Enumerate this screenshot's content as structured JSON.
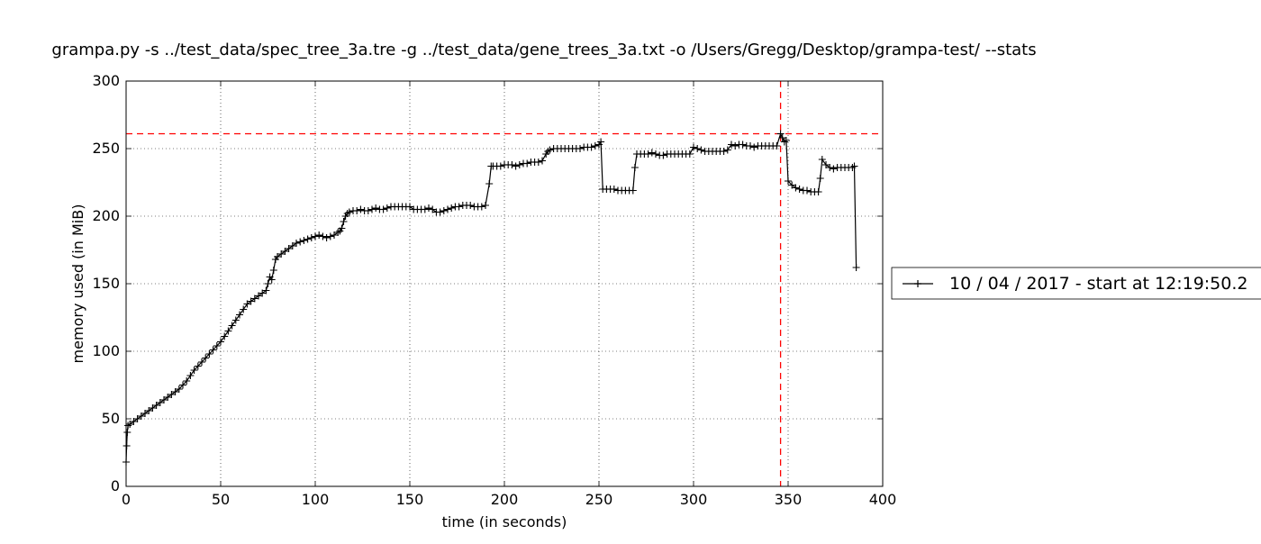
{
  "chart_data": {
    "type": "line",
    "title": "grampa.py -s ../test_data/spec_tree_3a.tre -g ../test_data/gene_trees_3a.txt -o /Users/Gregg/Desktop/grampa-test/ --stats",
    "xlabel": "time (in seconds)",
    "ylabel": "memory used (in MiB)",
    "xlim": [
      0,
      400
    ],
    "ylim": [
      0,
      300
    ],
    "xticks": [
      0,
      50,
      100,
      150,
      200,
      250,
      300,
      350,
      400
    ],
    "yticks": [
      0,
      50,
      100,
      150,
      200,
      250,
      300
    ],
    "grid": true,
    "legend_position": "right-outside",
    "marker": "plus",
    "series": [
      {
        "name": "10 / 04 / 2017 - start at 12:19:50.2",
        "color": "#000000",
        "x": [
          0,
          0.3,
          0.6,
          1,
          2,
          4,
          6,
          8,
          10,
          12,
          14,
          16,
          18,
          20,
          22,
          24,
          26,
          28,
          30,
          32,
          34,
          36,
          38,
          40,
          42,
          44,
          46,
          48,
          50,
          52,
          54,
          56,
          58,
          60,
          62,
          64,
          66,
          68,
          70,
          72,
          74,
          75,
          76,
          77,
          78,
          79,
          80,
          82,
          84,
          86,
          88,
          90,
          92,
          94,
          96,
          98,
          100,
          102,
          104,
          106,
          108,
          110,
          112,
          113,
          114,
          115,
          116,
          117,
          118,
          120,
          122,
          124,
          126,
          128,
          130,
          132,
          134,
          136,
          138,
          140,
          142,
          144,
          146,
          148,
          150,
          152,
          154,
          156,
          158,
          160,
          162,
          164,
          166,
          168,
          170,
          172,
          174,
          176,
          178,
          180,
          182,
          184,
          186,
          188,
          190,
          192,
          193,
          194,
          196,
          198,
          200,
          202,
          204,
          206,
          208,
          210,
          212,
          214,
          216,
          218,
          220,
          222,
          223,
          224,
          226,
          228,
          230,
          232,
          234,
          236,
          238,
          240,
          242,
          244,
          246,
          248,
          250,
          251,
          252,
          254,
          256,
          258,
          260,
          262,
          264,
          266,
          268,
          269,
          270,
          272,
          274,
          276,
          278,
          280,
          282,
          284,
          286,
          288,
          290,
          292,
          294,
          296,
          298,
          300,
          302,
          304,
          306,
          308,
          310,
          312,
          314,
          316,
          318,
          320,
          322,
          324,
          326,
          328,
          330,
          332,
          334,
          336,
          338,
          340,
          342,
          344,
          346,
          347,
          348,
          349,
          350,
          352,
          354,
          356,
          358,
          360,
          362,
          364,
          366,
          367,
          368,
          370,
          372,
          374,
          376,
          378,
          380,
          382,
          384,
          385,
          386
        ],
        "y": [
          18,
          30,
          40,
          45,
          46,
          48,
          50,
          52,
          54,
          56,
          58,
          60,
          62,
          64,
          66,
          68,
          70,
          72,
          75,
          78,
          82,
          86,
          89,
          92,
          95,
          98,
          101,
          104,
          107,
          111,
          115,
          119,
          123,
          127,
          131,
          135,
          137,
          139,
          141,
          143,
          145,
          150,
          155,
          153,
          160,
          168,
          170,
          172,
          174,
          176,
          178,
          180,
          181,
          182,
          183,
          184,
          185,
          186,
          185,
          184,
          185,
          186,
          188,
          189,
          191,
          196,
          200,
          202,
          203,
          204,
          204,
          205,
          204,
          204,
          205,
          206,
          205,
          205,
          206,
          207,
          207,
          207,
          207,
          207,
          207,
          205,
          205,
          205,
          205,
          206,
          205,
          203,
          203,
          204,
          205,
          206,
          207,
          207,
          208,
          208,
          208,
          207,
          207,
          207,
          208,
          224,
          237,
          237,
          237,
          237,
          238,
          238,
          238,
          237,
          238,
          239,
          239,
          240,
          240,
          240,
          241,
          246,
          248,
          249,
          250,
          250,
          250,
          250,
          250,
          250,
          250,
          250,
          251,
          251,
          251,
          252,
          253,
          255,
          220,
          220,
          220,
          220,
          219,
          219,
          219,
          219,
          219,
          236,
          246,
          246,
          246,
          246,
          247,
          246,
          245,
          245,
          246,
          246,
          246,
          246,
          246,
          246,
          246,
          251,
          250,
          249,
          248,
          248,
          248,
          248,
          248,
          248,
          249,
          253,
          252,
          253,
          253,
          252,
          252,
          251,
          252,
          252,
          252,
          252,
          252,
          252,
          261,
          258,
          255,
          256,
          226,
          223,
          221,
          220,
          219,
          219,
          218,
          218,
          218,
          228,
          242,
          238,
          236,
          235,
          236,
          236,
          236,
          236,
          236,
          237,
          162
        ]
      }
    ],
    "reference_lines": [
      {
        "orientation": "horizontal",
        "value": 261,
        "color": "#ff0000",
        "style": "dashed"
      },
      {
        "orientation": "vertical",
        "value": 346,
        "color": "#ff0000",
        "style": "dashed"
      }
    ]
  }
}
